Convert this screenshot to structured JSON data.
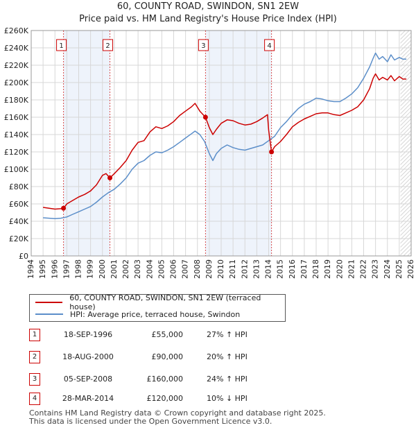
{
  "header": {
    "title": "60, COUNTY ROAD, SWINDON, SN1 2EW",
    "subtitle": "Price paid vs. HM Land Registry's House Price Index (HPI)"
  },
  "colors": {
    "property": "#cc0000",
    "hpi": "#5b8ec9",
    "band": "#eef3fb",
    "grid": "#d7d7d7",
    "marker_line": "#cc0000"
  },
  "chart_data": {
    "type": "line",
    "title": "Price paid vs. HM Land Registry's House Price Index (HPI)",
    "xlim": [
      1994,
      2026
    ],
    "ylim": [
      0,
      260000
    ],
    "y_ticks": [
      0,
      20000,
      40000,
      60000,
      80000,
      100000,
      120000,
      140000,
      160000,
      180000,
      200000,
      220000,
      240000,
      260000
    ],
    "y_tick_labels": [
      "£0",
      "£20K",
      "£40K",
      "£60K",
      "£80K",
      "£100K",
      "£120K",
      "£140K",
      "£160K",
      "£180K",
      "£200K",
      "£220K",
      "£240K",
      "£260K"
    ],
    "x_ticks": [
      1994,
      1995,
      1996,
      1997,
      1998,
      1999,
      2000,
      2001,
      2002,
      2003,
      2004,
      2005,
      2006,
      2007,
      2008,
      2009,
      2010,
      2011,
      2012,
      2013,
      2014,
      2015,
      2016,
      2017,
      2018,
      2019,
      2020,
      2021,
      2022,
      2023,
      2024,
      2025,
      2026
    ],
    "x_tick_labels": [
      "1994",
      "1995",
      "1996",
      "1997",
      "1998",
      "1999",
      "2000",
      "2001",
      "2002",
      "2003",
      "2004",
      "2005",
      "2006",
      "2007",
      "2008",
      "2009",
      "2010",
      "2011",
      "2012",
      "2013",
      "2014",
      "2015",
      "2016",
      "2017",
      "2018",
      "2019",
      "2020",
      "2021",
      "2022",
      "2023",
      "2024",
      "2025",
      "2026"
    ],
    "forecast_from": 2025.1,
    "series": [
      {
        "name": "60, COUNTY ROAD, SWINDON, SN1 2EW (terraced house)",
        "color": "#cc0000",
        "x": [
          1995.0,
          1995.5,
          1996.0,
          1996.5,
          1996.72,
          1997.0,
          1997.5,
          1998.0,
          1998.5,
          1999.0,
          1999.5,
          2000.0,
          2000.3,
          2000.63,
          2001.0,
          2001.5,
          2002.0,
          2002.5,
          2003.0,
          2003.5,
          2004.0,
          2004.5,
          2005.0,
          2005.5,
          2006.0,
          2006.5,
          2007.0,
          2007.5,
          2007.8,
          2008.2,
          2008.68,
          2009.0,
          2009.3,
          2009.6,
          2010.0,
          2010.5,
          2011.0,
          2011.5,
          2012.0,
          2012.5,
          2013.0,
          2013.5,
          2013.9,
          2014.0,
          2014.24,
          2014.5,
          2015.0,
          2015.5,
          2016.0,
          2016.5,
          2017.0,
          2017.5,
          2018.0,
          2018.5,
          2019.0,
          2019.5,
          2020.0,
          2020.5,
          2021.0,
          2021.5,
          2022.0,
          2022.5,
          2022.8,
          2023.0,
          2023.3,
          2023.6,
          2024.0,
          2024.3,
          2024.6,
          2025.0,
          2025.3,
          2025.6
        ],
        "y": [
          56000,
          55000,
          54000,
          54500,
          55000,
          60000,
          64000,
          68000,
          71000,
          75000,
          82000,
          93000,
          95000,
          90000,
          95000,
          102000,
          110000,
          122000,
          131000,
          133000,
          143000,
          149000,
          147000,
          150000,
          155000,
          162000,
          167000,
          172000,
          176000,
          167000,
          160000,
          148000,
          140000,
          146000,
          153000,
          157000,
          156000,
          153000,
          151000,
          152000,
          155000,
          159000,
          163000,
          145000,
          120000,
          126000,
          132000,
          140000,
          149000,
          154000,
          158000,
          161000,
          164000,
          165000,
          165000,
          163000,
          162000,
          165000,
          168000,
          172000,
          180000,
          193000,
          205000,
          210000,
          203000,
          206000,
          203000,
          208000,
          202000,
          207000,
          204000,
          204000
        ]
      },
      {
        "name": "HPI: Average price, terraced house, Swindon",
        "color": "#5b8ec9",
        "x": [
          1995.0,
          1995.5,
          1996.0,
          1996.5,
          1997.0,
          1997.5,
          1998.0,
          1998.5,
          1999.0,
          1999.5,
          2000.0,
          2000.5,
          2001.0,
          2001.5,
          2002.0,
          2002.5,
          2003.0,
          2003.5,
          2004.0,
          2004.5,
          2005.0,
          2005.5,
          2006.0,
          2006.5,
          2007.0,
          2007.5,
          2007.8,
          2008.2,
          2008.6,
          2009.0,
          2009.3,
          2009.6,
          2010.0,
          2010.5,
          2011.0,
          2011.5,
          2012.0,
          2012.5,
          2013.0,
          2013.5,
          2014.0,
          2014.5,
          2015.0,
          2015.5,
          2016.0,
          2016.5,
          2017.0,
          2017.5,
          2018.0,
          2018.5,
          2019.0,
          2019.5,
          2020.0,
          2020.5,
          2021.0,
          2021.5,
          2022.0,
          2022.5,
          2022.8,
          2023.0,
          2023.3,
          2023.6,
          2024.0,
          2024.3,
          2024.6,
          2025.0,
          2025.3,
          2025.6
        ],
        "y": [
          44000,
          43500,
          43000,
          43500,
          45000,
          48000,
          51000,
          54000,
          57000,
          62000,
          68000,
          73000,
          77000,
          83000,
          90000,
          100000,
          107000,
          110000,
          116000,
          120000,
          119000,
          122000,
          126000,
          131000,
          136000,
          141000,
          144000,
          140000,
          132000,
          118000,
          110000,
          118000,
          124000,
          128000,
          125000,
          123000,
          122000,
          124000,
          126000,
          128000,
          133000,
          138000,
          148000,
          155000,
          163000,
          170000,
          175000,
          178000,
          182000,
          181000,
          179000,
          178000,
          178000,
          182000,
          187000,
          194000,
          205000,
          218000,
          228000,
          234000,
          227000,
          230000,
          224000,
          232000,
          226000,
          229000,
          227000,
          227000
        ]
      }
    ],
    "sales": [
      {
        "label": "1",
        "x": 1996.72,
        "y": 55000
      },
      {
        "label": "2",
        "x": 2000.63,
        "y": 90000
      },
      {
        "label": "3",
        "x": 2008.68,
        "y": 160000
      },
      {
        "label": "4",
        "x": 2014.24,
        "y": 120000
      }
    ]
  },
  "legend": {
    "property_label": "60, COUNTY ROAD, SWINDON, SN1 2EW (terraced house)",
    "hpi_label": "HPI: Average price, terraced house, Swindon"
  },
  "transactions": [
    {
      "num": "1",
      "date": "18-SEP-1996",
      "price": "£55,000",
      "hpi": "27% ↑ HPI"
    },
    {
      "num": "2",
      "date": "18-AUG-2000",
      "price": "£90,000",
      "hpi": "20% ↑ HPI"
    },
    {
      "num": "3",
      "date": "05-SEP-2008",
      "price": "£160,000",
      "hpi": "24% ↑ HPI"
    },
    {
      "num": "4",
      "date": "28-MAR-2014",
      "price": "£120,000",
      "hpi": "10% ↓ HPI"
    }
  ],
  "footer": {
    "line1": "Contains HM Land Registry data © Crown copyright and database right 2025.",
    "line2": "This data is licensed under the Open Government Licence v3.0."
  }
}
